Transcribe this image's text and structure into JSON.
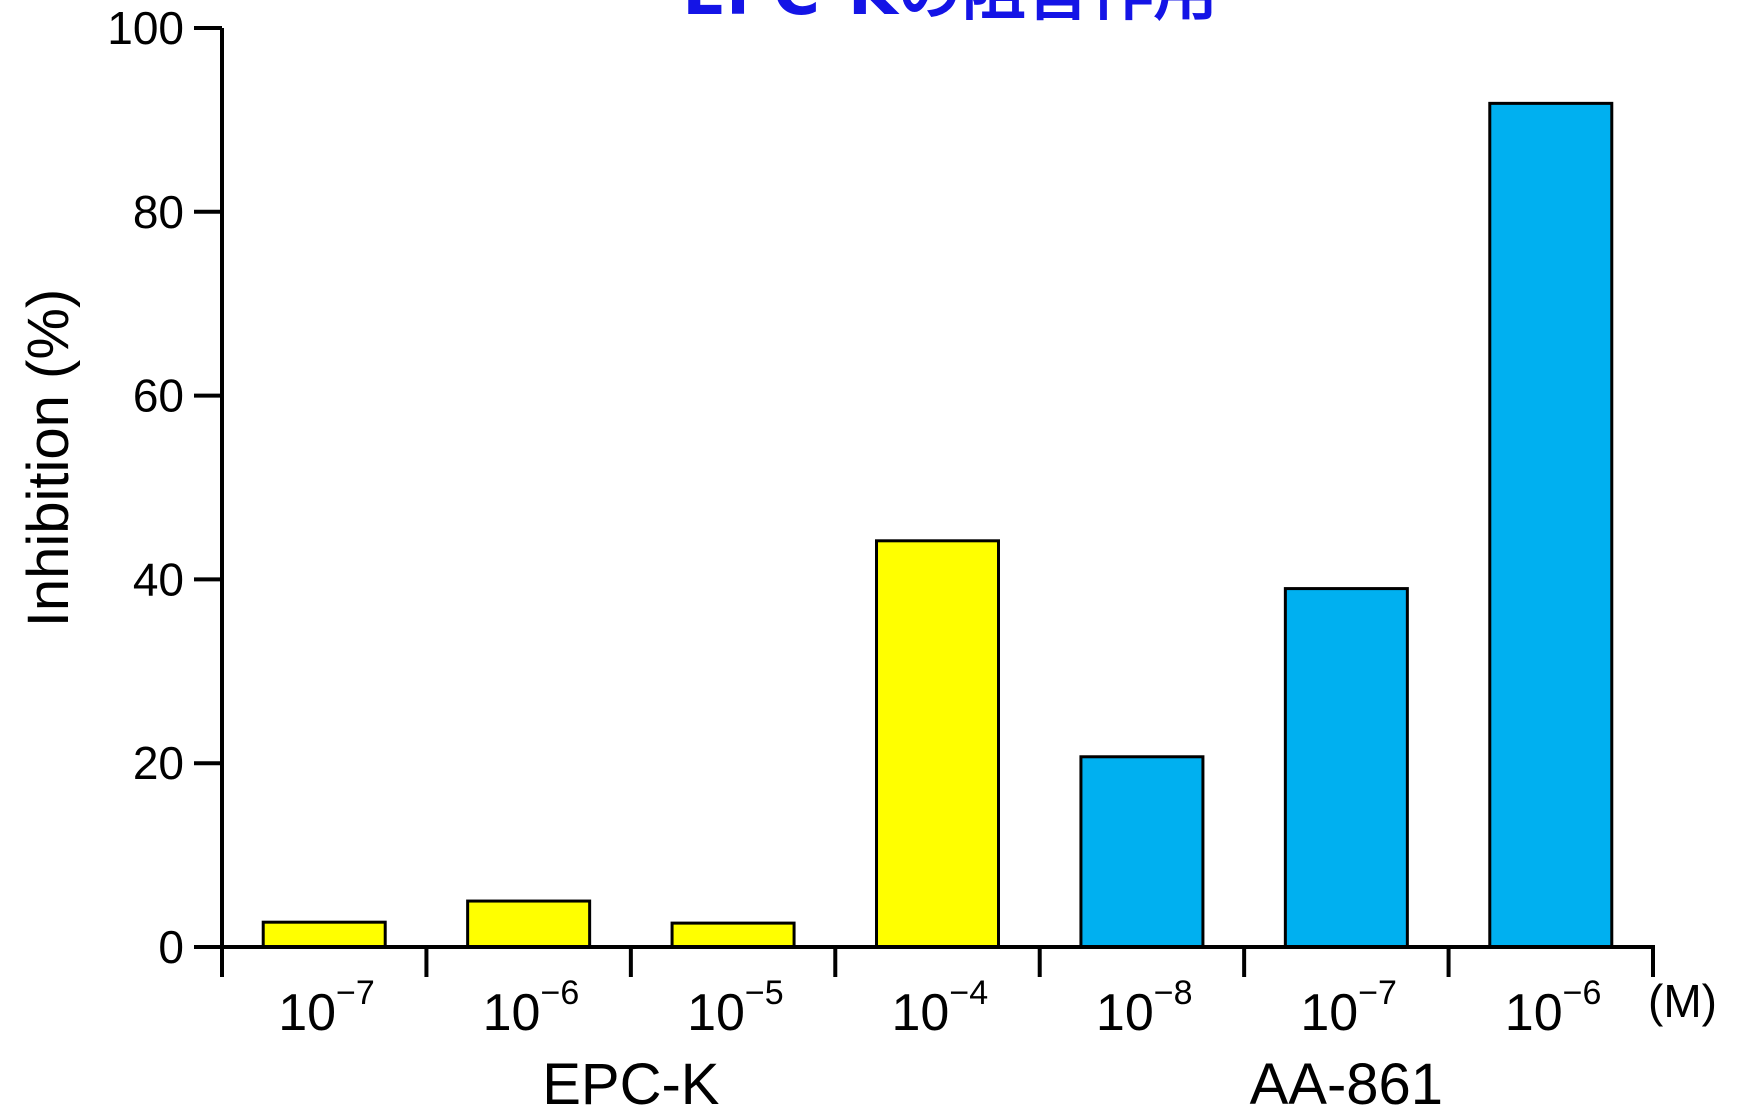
{
  "chart_data": {
    "type": "bar",
    "title": "EPC-Kの阻害作用",
    "ylabel": "Inhibition (%)",
    "xunit": "(M)",
    "ylim": [
      0,
      100
    ],
    "yticks": [
      0,
      20,
      40,
      60,
      80,
      100
    ],
    "categories": [
      {
        "base": "10",
        "exp": "−7",
        "group": 0
      },
      {
        "base": "10",
        "exp": "−6",
        "group": 0
      },
      {
        "base": "10",
        "exp": "−5",
        "group": 0
      },
      {
        "base": "10",
        "exp": "−4",
        "group": 0
      },
      {
        "base": "10",
        "exp": "−8",
        "group": 1
      },
      {
        "base": "10",
        "exp": "−7",
        "group": 1
      },
      {
        "base": "10",
        "exp": "−6",
        "group": 1
      }
    ],
    "values": [
      2.7,
      5.0,
      2.6,
      44.2,
      20.7,
      39.0,
      91.8
    ],
    "groups": [
      {
        "label": "EPC-K",
        "color": "#ffff00"
      },
      {
        "label": "AA-861",
        "color": "#00b0f0"
      }
    ],
    "grid": false,
    "legend": "none"
  }
}
